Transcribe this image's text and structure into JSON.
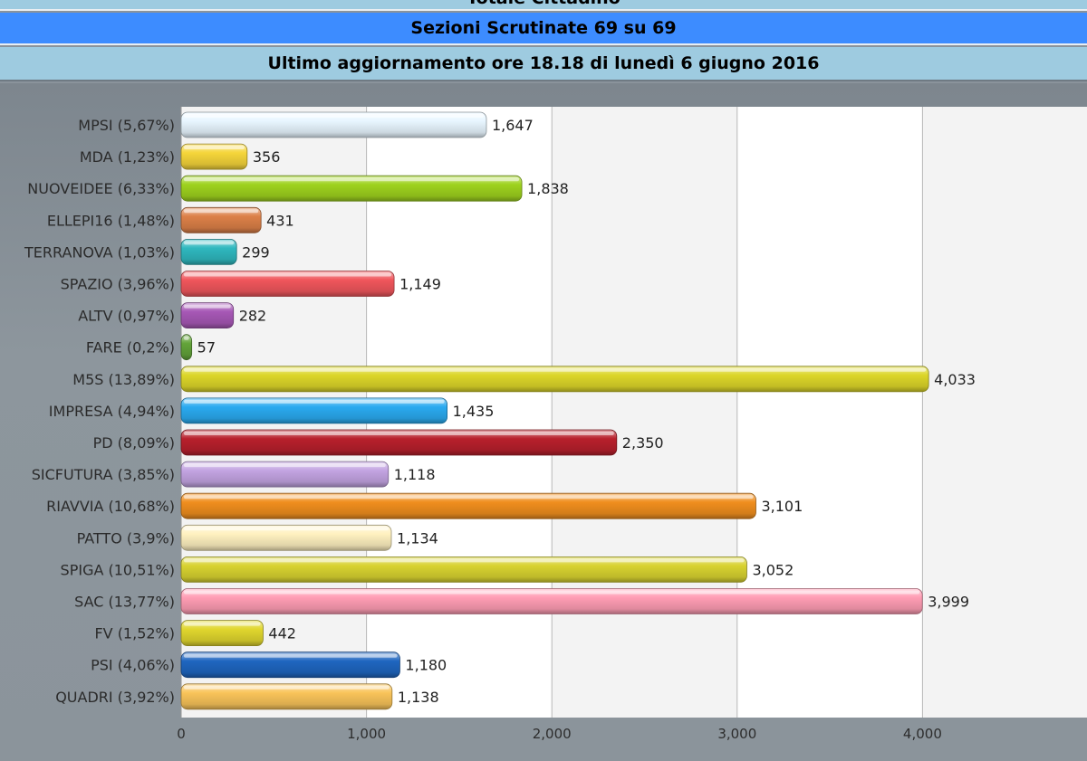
{
  "header": {
    "top_title": "Totale Cittadino",
    "sezioni": "Sezioni Scrutinate 69 su 69",
    "aggiornamento": "Ultimo aggiornamento ore 18.18 di lunedì 6 giugno 2016"
  },
  "chart_data": {
    "type": "bar",
    "orientation": "horizontal",
    "categories": [
      "MPSI (5,67%)",
      "MDA (1,23%)",
      "NUOVEIDEE (6,33%)",
      "ELLEPI16 (1,48%)",
      "TERRANOVA (1,03%)",
      "SPAZIO (3,96%)",
      "ALTV (0,97%)",
      "FARE (0,2%)",
      "M5S (13,89%)",
      "IMPRESA (4,94%)",
      "PD (8,09%)",
      "SICFUTURA (3,85%)",
      "RIAVVIA (10,68%)",
      "PATTO (3,9%)",
      "SPIGA (10,51%)",
      "SAC (13,77%)",
      "FV (1,52%)",
      "PSI (4,06%)",
      "QUADRI (3,92%)"
    ],
    "values": [
      1647,
      356,
      1838,
      431,
      299,
      1149,
      282,
      57,
      4033,
      1435,
      2350,
      1118,
      3101,
      1134,
      3052,
      3999,
      442,
      1180,
      1138
    ],
    "value_labels": [
      "1,647",
      "356",
      "1,838",
      "431",
      "299",
      "1,149",
      "282",
      "57",
      "4,033",
      "1,435",
      "2,350",
      "1,118",
      "3,101",
      "1,134",
      "3,052",
      "3,999",
      "442",
      "1,180",
      "1,138"
    ],
    "colors": [
      "#e8f6ff",
      "#f5d53a",
      "#9ed21e",
      "#dc8048",
      "#2fb8bf",
      "#f0565c",
      "#a758b6",
      "#63a43a",
      "#dcd629",
      "#2aaaf0",
      "#b8202c",
      "#c3a4e2",
      "#f08e1e",
      "#fff1c0",
      "#d8d230",
      "#ff9db4",
      "#e0d62e",
      "#1f66c0",
      "#f9c45a"
    ],
    "x_ticks": [
      "0",
      "1,000",
      "2,000",
      "3,000",
      "4,000"
    ],
    "xlim": [
      0,
      4500
    ],
    "grid": true,
    "xlabel": "",
    "ylabel": ""
  }
}
